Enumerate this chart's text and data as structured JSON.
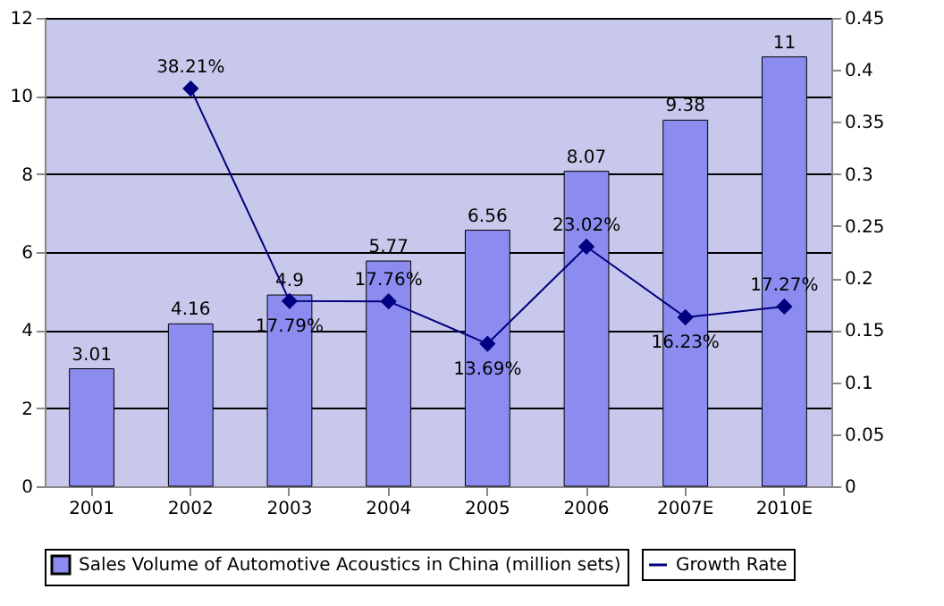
{
  "chart_data": {
    "type": "bar",
    "categories": [
      "2001",
      "2002",
      "2003",
      "2004",
      "2005",
      "2006",
      "2007E",
      "2010E"
    ],
    "series": [
      {
        "name": "Sales Volume of Automotive Acoustics in China (million sets)",
        "color": "#8c8cf0",
        "values": [
          3.01,
          4.16,
          4.9,
          5.77,
          6.56,
          8.07,
          9.38,
          11
        ],
        "value_labels": [
          "3.01",
          "4.16",
          "4.9",
          "5.77",
          "6.56",
          "8.07",
          "9.38",
          "11"
        ]
      },
      {
        "name": "Growth Rate",
        "type": "line",
        "axis": "y2",
        "color": "#000080",
        "marker": "diamond",
        "values": [
          null,
          0.3821,
          0.1779,
          0.1776,
          0.1369,
          0.2302,
          0.1623,
          0.1727
        ],
        "value_labels": [
          null,
          "38.21%",
          "17.79%",
          "17.76%",
          "13.69%",
          "23.02%",
          "16.23%",
          "17.27%"
        ]
      }
    ],
    "ylim": [
      0,
      12
    ],
    "yticks": [
      0,
      2,
      4,
      6,
      8,
      10,
      12
    ],
    "y2lim": [
      0,
      0.45
    ],
    "y2ticks": [
      0,
      0.05,
      0.1,
      0.15,
      0.2,
      0.25,
      0.3,
      0.35,
      0.4,
      0.45
    ],
    "grid": "y",
    "legend": "bottom"
  }
}
